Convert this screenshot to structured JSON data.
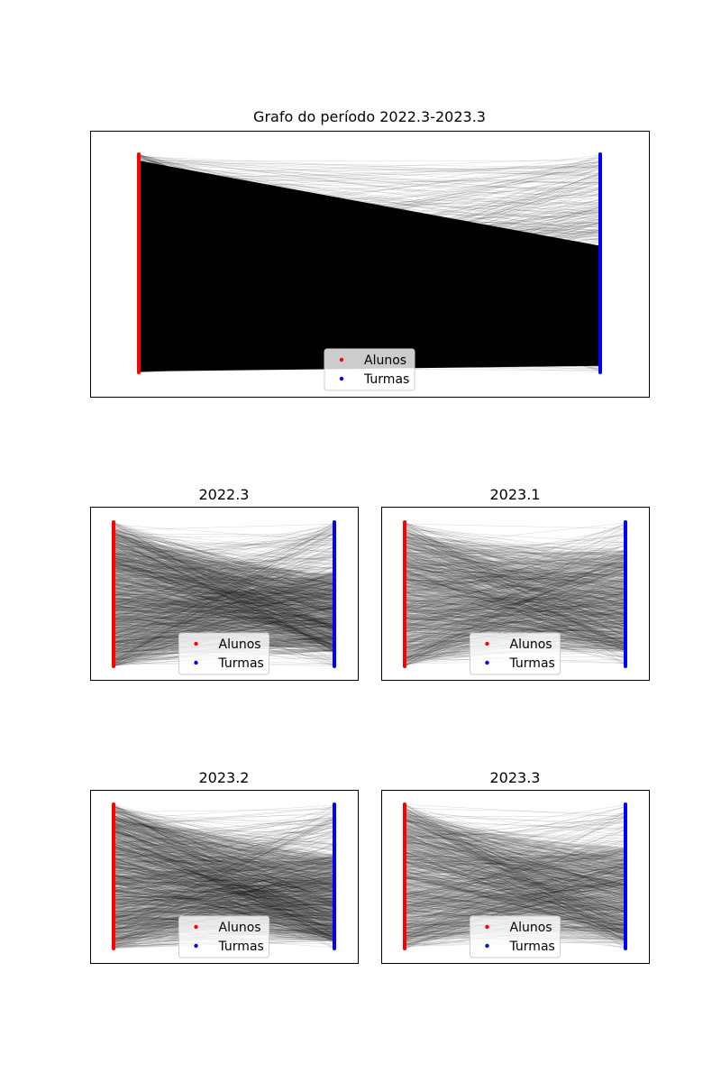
{
  "chart_data": [
    {
      "type": "scatter",
      "title": "Grafo do período 2022.3-2023.3",
      "legend_position": "lower center",
      "grid": false,
      "axes_visible": false,
      "series": [
        {
          "name": "Alunos",
          "color": "#ff0000",
          "x": 0,
          "y_range": [
            0,
            1
          ]
        },
        {
          "name": "Turmas",
          "color": "#0000ff",
          "x": 1,
          "y_range": [
            0,
            1
          ]
        }
      ],
      "edge_color": "#000000",
      "density": "very high",
      "heavy_band_to": [
        0.42,
        0.9
      ]
    },
    {
      "type": "scatter",
      "title": "2022.3",
      "legend_position": "lower center",
      "grid": false,
      "axes_visible": false,
      "series": [
        {
          "name": "Alunos",
          "color": "#ff0000",
          "x": 0,
          "y_range": [
            0,
            1
          ]
        },
        {
          "name": "Turmas",
          "color": "#0000ff",
          "x": 1,
          "y_range": [
            0,
            1
          ]
        }
      ],
      "edge_color": "#000000",
      "density": "high",
      "heavy_band_to": [
        0.35,
        0.9
      ]
    },
    {
      "type": "scatter",
      "title": "2023.1",
      "legend_position": "lower center",
      "grid": false,
      "axes_visible": false,
      "series": [
        {
          "name": "Alunos",
          "color": "#ff0000",
          "x": 0,
          "y_range": [
            0,
            1
          ]
        },
        {
          "name": "Turmas",
          "color": "#0000ff",
          "x": 1,
          "y_range": [
            0,
            1
          ]
        }
      ],
      "edge_color": "#000000",
      "density": "medium",
      "heavy_band_to": [
        0.2,
        0.9
      ]
    },
    {
      "type": "scatter",
      "title": "2023.2",
      "legend_position": "lower center",
      "grid": false,
      "axes_visible": false,
      "series": [
        {
          "name": "Alunos",
          "color": "#ff0000",
          "x": 0,
          "y_range": [
            0,
            1
          ]
        },
        {
          "name": "Turmas",
          "color": "#0000ff",
          "x": 1,
          "y_range": [
            0,
            1
          ]
        }
      ],
      "edge_color": "#000000",
      "density": "high",
      "heavy_band_to": [
        0.35,
        0.95
      ]
    },
    {
      "type": "scatter",
      "title": "2023.3",
      "legend_position": "lower center",
      "grid": false,
      "axes_visible": false,
      "series": [
        {
          "name": "Alunos",
          "color": "#ff0000",
          "x": 0,
          "y_range": [
            0,
            1
          ]
        },
        {
          "name": "Turmas",
          "color": "#0000ff",
          "x": 1,
          "y_range": [
            0,
            1
          ]
        }
      ],
      "edge_color": "#000000",
      "density": "medium",
      "heavy_band_to": [
        0.3,
        0.95
      ]
    }
  ]
}
